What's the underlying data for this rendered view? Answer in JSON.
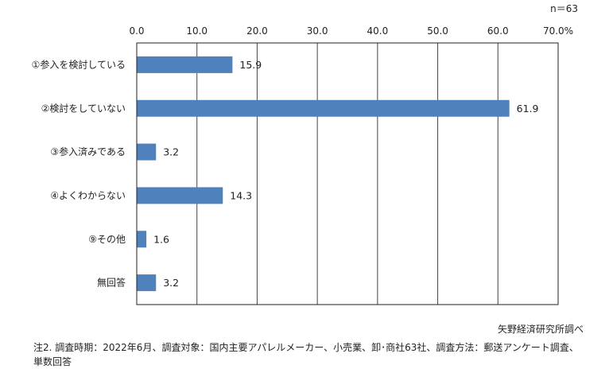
{
  "chart_data": {
    "type": "bar",
    "orientation": "horizontal",
    "n_label": "n＝63",
    "categories": [
      "①参入を検討している",
      "②検討をしていない",
      "③参入済みである",
      "④よくわからない",
      "⑨その他",
      "無回答"
    ],
    "values": [
      15.9,
      61.9,
      3.2,
      14.3,
      1.6,
      3.2
    ],
    "value_labels": [
      "15.9",
      "61.9",
      "3.2",
      "14.3",
      "1.6",
      "3.2"
    ],
    "ticks": [
      "0.0",
      "10.0",
      "20.0",
      "30.0",
      "40.0",
      "50.0",
      "60.0",
      "70.0%"
    ],
    "xlim": [
      0,
      70
    ],
    "grid": true,
    "bar_color": "#4f81bd"
  },
  "footer": {
    "source": "矢野経済研究所調べ",
    "note_line1": "注2. 調査時期：2022年6月、調査対象：国内主要アパレルメーカー、小売業、卸･商社63社、調査方法：郵送アンケート調査、",
    "note_line2": "単数回答"
  }
}
